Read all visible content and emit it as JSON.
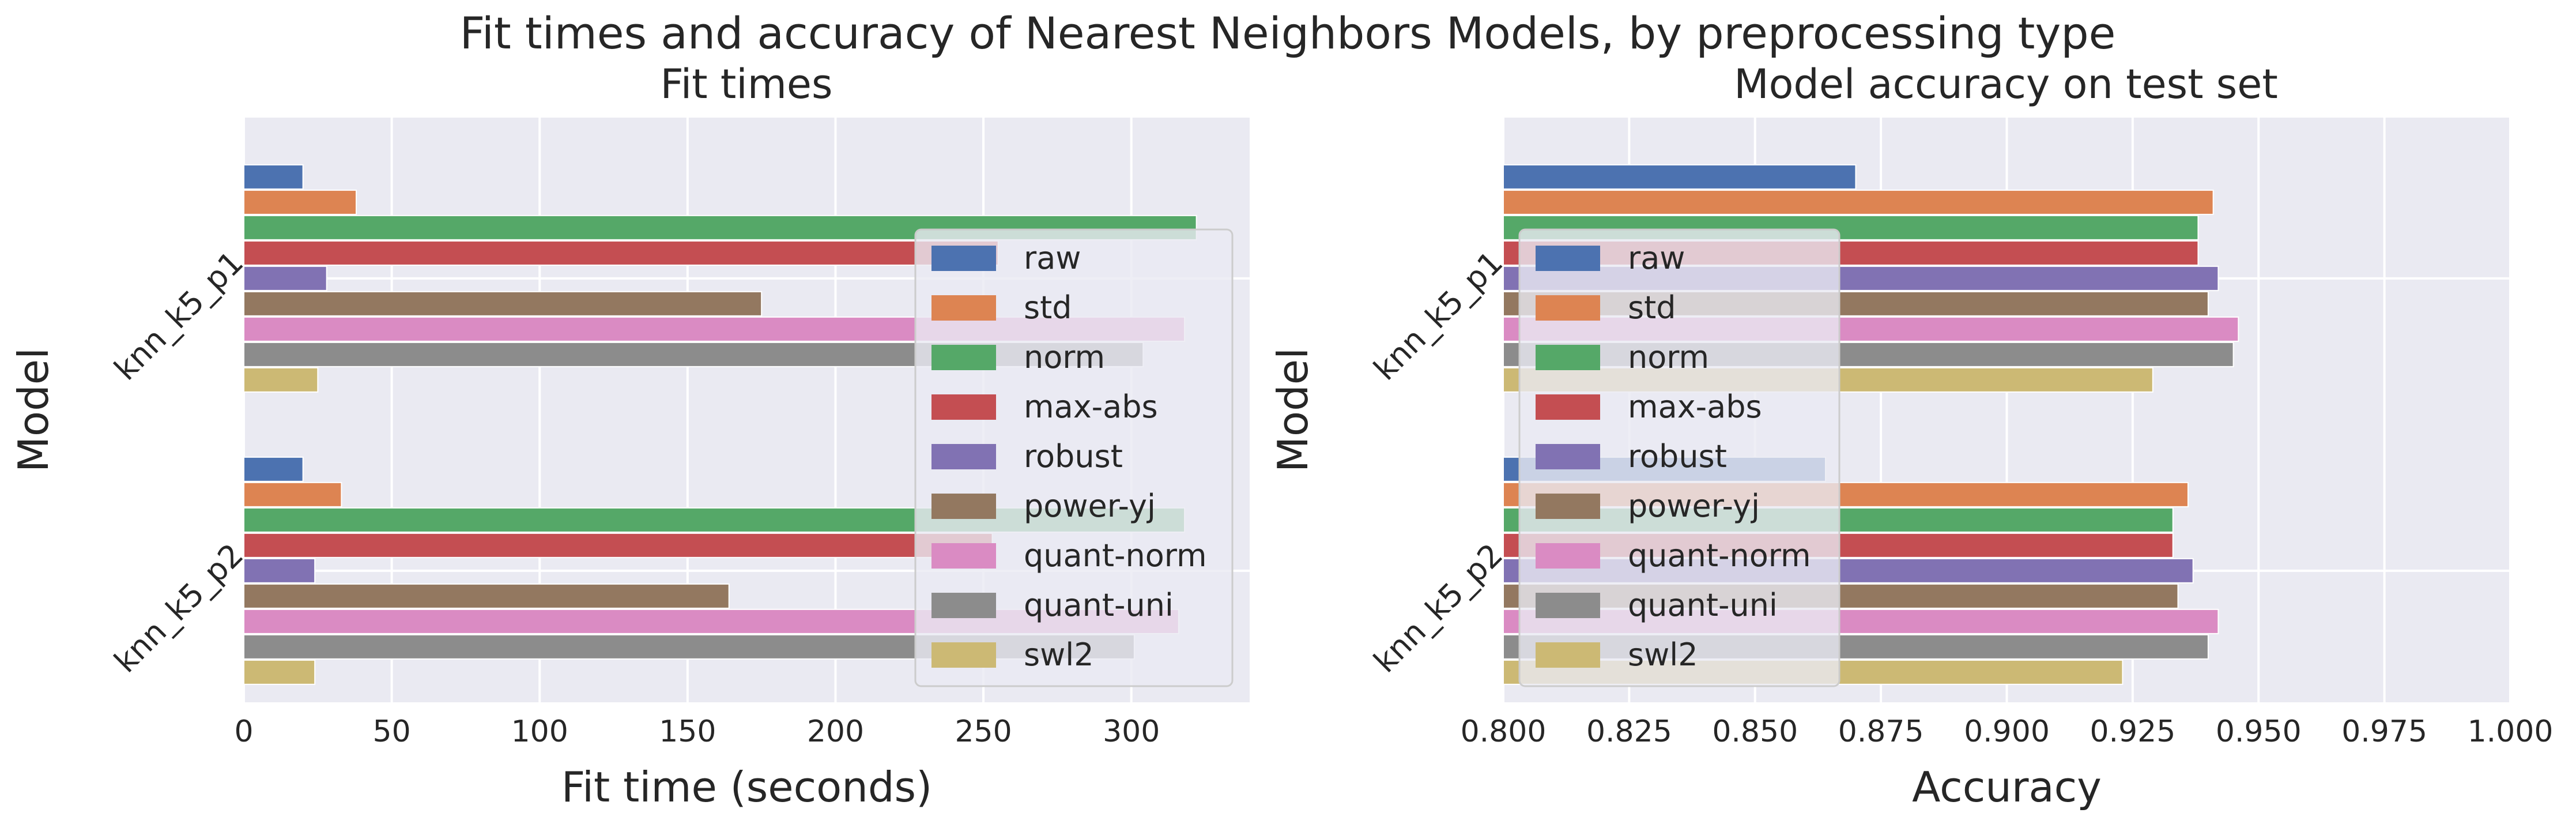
{
  "figure": {
    "suptitle": "Fit times and accuracy of Nearest Neighbors Models, by preprocessing type"
  },
  "colors": {
    "plot_background": "#EAEAF2",
    "grid": "#FFFFFF",
    "text": "#262626",
    "legend_background": "#EAEAF2",
    "legend_border": "#CCCCCC"
  },
  "legend": {
    "entries": [
      "raw",
      "std",
      "norm",
      "max-abs",
      "robust",
      "power-yj",
      "quant-norm",
      "quant-uni",
      "swl2"
    ],
    "placement": "center-right"
  },
  "chart_data": [
    {
      "type": "bar",
      "orientation": "horizontal",
      "title": "Fit times",
      "xlabel": "Fit time (seconds)",
      "ylabel": "Model",
      "categories": [
        "knn_k5_p1",
        "knn_k5_p2"
      ],
      "xlim": [
        0,
        340
      ],
      "xticks": [
        0,
        50,
        100,
        150,
        200,
        250,
        300
      ],
      "xtick_labels": [
        "0",
        "50",
        "100",
        "150",
        "200",
        "250",
        "300"
      ],
      "grid": true,
      "series": [
        {
          "name": "raw",
          "color": "#4C72B0",
          "values": [
            20,
            20
          ]
        },
        {
          "name": "std",
          "color": "#DD8452",
          "values": [
            38,
            33
          ]
        },
        {
          "name": "norm",
          "color": "#55A868",
          "values": [
            322,
            318
          ]
        },
        {
          "name": "max-abs",
          "color": "#C44E52",
          "values": [
            255,
            253
          ]
        },
        {
          "name": "robust",
          "color": "#8172B3",
          "values": [
            28,
            24
          ]
        },
        {
          "name": "power-yj",
          "color": "#937860",
          "values": [
            175,
            164
          ]
        },
        {
          "name": "quant-norm",
          "color": "#DA8BC3",
          "values": [
            318,
            316
          ]
        },
        {
          "name": "quant-uni",
          "color": "#8C8C8C",
          "values": [
            304,
            301
          ]
        },
        {
          "name": "swl2",
          "color": "#CCB974",
          "values": [
            25,
            24
          ]
        }
      ]
    },
    {
      "type": "bar",
      "orientation": "horizontal",
      "title": "Model accuracy on test set",
      "xlabel": "Accuracy",
      "ylabel": "Model",
      "categories": [
        "knn_k5_p1",
        "knn_k5_p2"
      ],
      "xlim": [
        0.8,
        1.0
      ],
      "xticks": [
        0.8,
        0.825,
        0.85,
        0.875,
        0.9,
        0.925,
        0.95,
        0.975,
        1.0
      ],
      "xtick_labels": [
        "0.800",
        "0.825",
        "0.850",
        "0.875",
        "0.900",
        "0.925",
        "0.950",
        "0.975",
        "1.000"
      ],
      "grid": true,
      "series": [
        {
          "name": "raw",
          "color": "#4C72B0",
          "values": [
            0.87,
            0.864
          ]
        },
        {
          "name": "std",
          "color": "#DD8452",
          "values": [
            0.941,
            0.936
          ]
        },
        {
          "name": "norm",
          "color": "#55A868",
          "values": [
            0.938,
            0.933
          ]
        },
        {
          "name": "max-abs",
          "color": "#C44E52",
          "values": [
            0.938,
            0.933
          ]
        },
        {
          "name": "robust",
          "color": "#8172B3",
          "values": [
            0.942,
            0.937
          ]
        },
        {
          "name": "power-yj",
          "color": "#937860",
          "values": [
            0.94,
            0.934
          ]
        },
        {
          "name": "quant-norm",
          "color": "#DA8BC3",
          "values": [
            0.946,
            0.942
          ]
        },
        {
          "name": "quant-uni",
          "color": "#8C8C8C",
          "values": [
            0.945,
            0.94
          ]
        },
        {
          "name": "swl2",
          "color": "#CCB974",
          "values": [
            0.929,
            0.923
          ]
        }
      ]
    }
  ]
}
